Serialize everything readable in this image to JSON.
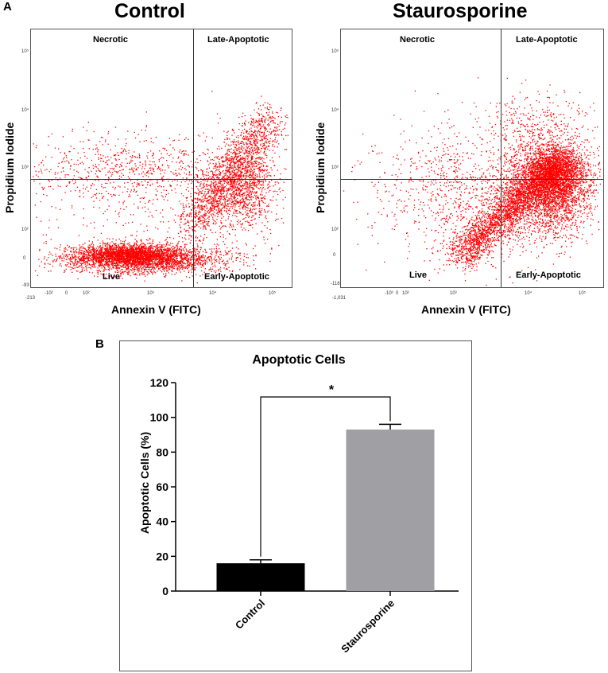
{
  "panel_a": {
    "letter": "A",
    "plots": [
      {
        "title": "Control",
        "quadrants": {
          "top_left": "Necrotic",
          "top_right": "Late-Apoptotic",
          "bottom_left": "Live",
          "bottom_right": "Early-Apoptotic"
        },
        "xlabel": "Annexin V (FITC)",
        "ylabel": "Propidium Iodide",
        "x_ticks": [
          "-213",
          "-10²",
          "0",
          "10²",
          "10³",
          "10⁴",
          "10⁵"
        ],
        "y_ticks": [
          "-93",
          "0",
          "10²",
          "10³",
          "10⁴",
          "10⁵"
        ],
        "gates": {
          "x": "10³·⁵",
          "y": "10³"
        }
      },
      {
        "title": "Staurosporine",
        "quadrants": {
          "top_left": "Necrotic",
          "top_right": "Late-Apoptotic",
          "bottom_left": "Live",
          "bottom_right": "Early-Apoptotic"
        },
        "xlabel": "Annexin V (FITC)",
        "ylabel": "Propidium Iodide",
        "x_ticks": [
          "-1,031",
          "-10³",
          "0",
          "10²",
          "10³",
          "10⁴",
          "10⁵"
        ],
        "y_ticks": [
          "-118",
          "0",
          "10²",
          "10³",
          "10⁴",
          "10⁵"
        ],
        "gates": {
          "x": "10³·⁵",
          "y": "10³"
        }
      }
    ],
    "dot_color": "#ff0000"
  },
  "panel_b": {
    "letter": "B",
    "significance": "*"
  },
  "chart_data": {
    "type": "bar",
    "title": "Apoptotic Cells",
    "categories": [
      "Control",
      "Staurosporine"
    ],
    "values": [
      16,
      93
    ],
    "errors": [
      2,
      3
    ],
    "colors": [
      "#000000",
      "#a0a0a4"
    ],
    "xlabel": "",
    "ylabel": "Apoptotic Cells (%)",
    "ylim": [
      0,
      120
    ],
    "yticks": [
      0,
      20,
      40,
      60,
      80,
      100,
      120
    ]
  }
}
